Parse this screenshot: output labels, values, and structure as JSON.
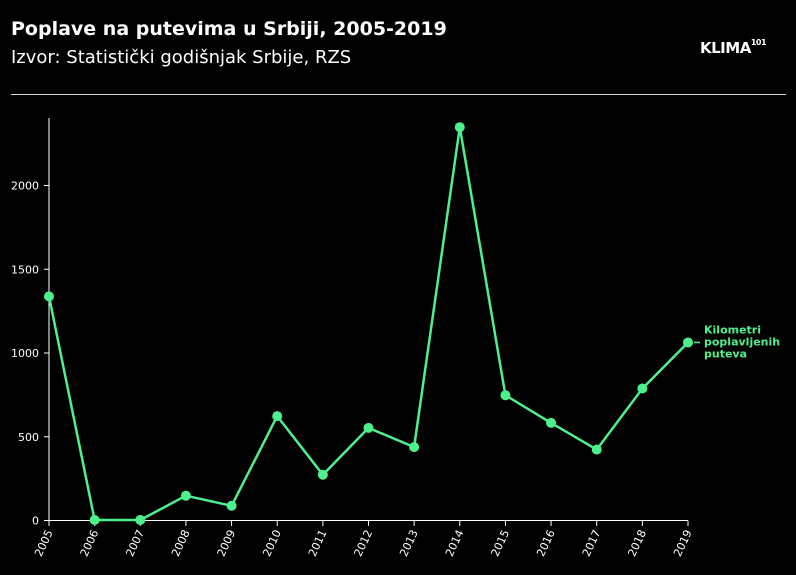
{
  "header": {
    "title": "Poplave na putevima u Srbiji, 2005-2019",
    "subtitle": "Izvor: Statistički godišnjak Srbije, RZS",
    "logo_text": "KLIMA",
    "logo_sup": "101"
  },
  "colors": {
    "background": "#000000",
    "line": "#4cf08c",
    "text": "#ffffff",
    "divider": "#d9d9d9"
  },
  "chart_data": {
    "type": "line",
    "title": "Poplave na putevima u Srbiji, 2005-2019",
    "subtitle": "Izvor: Statistički godišnjak Srbije, RZS",
    "xlabel": "",
    "ylabel": "",
    "x": [
      "2005",
      "2006",
      "2007",
      "2008",
      "2009",
      "2010",
      "2011",
      "2012",
      "2013",
      "2014",
      "2015",
      "2016",
      "2017",
      "2018",
      "2019"
    ],
    "ylim": [
      0,
      2400
    ],
    "yticks": [
      "0",
      "500",
      "1000",
      "1500",
      "2000"
    ],
    "grid": false,
    "series": [
      {
        "name": "Kilometri poplavljenih puteva",
        "label_lines": [
          "Kilometri",
          "poplavljenih",
          "puteva"
        ],
        "values": [
          1335,
          0,
          0,
          145,
          85,
          620,
          270,
          550,
          435,
          2345,
          745,
          580,
          420,
          785,
          1060
        ]
      }
    ]
  }
}
